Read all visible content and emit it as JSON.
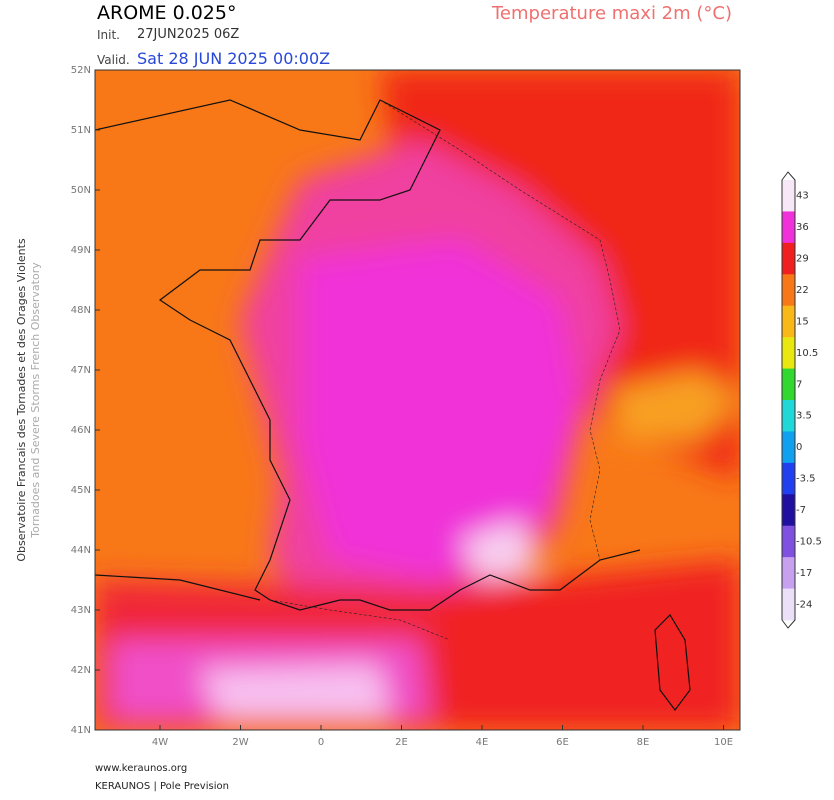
{
  "header": {
    "model": "AROME 0.025°",
    "init_label": "Init.",
    "init": "27JUN2025 06Z",
    "valid_label": "Valid.",
    "valid": "Sat 28 JUN 2025 00:00Z",
    "parameter": "Temperature maxi 2m (°C)"
  },
  "side": {
    "line1": "Observatoire Francais des Tornades et des Orages Violents",
    "line2": "Tornadoes and Severe Storms French Observatory"
  },
  "axes": {
    "lat_labels": [
      "52N",
      "51N",
      "50N",
      "49N",
      "48N",
      "47N",
      "46N",
      "45N",
      "44N",
      "43N",
      "42N",
      "41N"
    ],
    "lon_labels": [
      "4W",
      "2W",
      "0",
      "2E",
      "4E",
      "6E",
      "8E",
      "10E"
    ]
  },
  "colorbar": [
    {
      "label": "43",
      "color": "#f6e8f6"
    },
    {
      "label": "36",
      "color": "#f030d8"
    },
    {
      "label": "29",
      "color": "#f02020"
    },
    {
      "label": "22",
      "color": "#f87818"
    },
    {
      "label": "15",
      "color": "#f8b818"
    },
    {
      "label": "10.5",
      "color": "#e8e810"
    },
    {
      "label": "7",
      "color": "#30d830"
    },
    {
      "label": "3.5",
      "color": "#20d8d8"
    },
    {
      "label": "0",
      "color": "#10a0f0"
    },
    {
      "label": "-3.5",
      "color": "#2040f0"
    },
    {
      "label": "-7",
      "color": "#2010a0"
    },
    {
      "label": "-10.5",
      "color": "#8050e0"
    },
    {
      "label": "-17",
      "color": "#c8a0f0"
    },
    {
      "label": "-24",
      "color": "#ece0f8"
    }
  ],
  "footer": {
    "site": "www.keraunos.org",
    "credit": "KERAUNOS | Pole Prevision"
  }
}
